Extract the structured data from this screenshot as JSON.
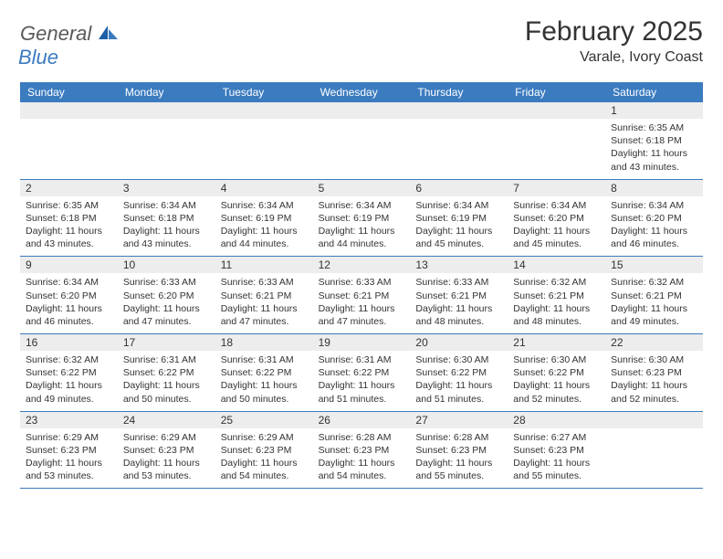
{
  "logo": {
    "text1": "General",
    "text2": "Blue"
  },
  "title": "February 2025",
  "location": "Varale, Ivory Coast",
  "colors": {
    "header_bg": "#3b7bbf",
    "header_text": "#ffffff",
    "daynum_bg": "#ededed",
    "body_text": "#333333",
    "rule": "#3b7bbf",
    "logo_gray": "#5a5a5a",
    "logo_blue": "#3b7bbf"
  },
  "day_names": [
    "Sunday",
    "Monday",
    "Tuesday",
    "Wednesday",
    "Thursday",
    "Friday",
    "Saturday"
  ],
  "weeks": [
    [
      null,
      null,
      null,
      null,
      null,
      null,
      {
        "d": "1",
        "sr": "6:35 AM",
        "ss": "6:18 PM",
        "dl": "11 hours and 43 minutes."
      }
    ],
    [
      {
        "d": "2",
        "sr": "6:35 AM",
        "ss": "6:18 PM",
        "dl": "11 hours and 43 minutes."
      },
      {
        "d": "3",
        "sr": "6:34 AM",
        "ss": "6:18 PM",
        "dl": "11 hours and 43 minutes."
      },
      {
        "d": "4",
        "sr": "6:34 AM",
        "ss": "6:19 PM",
        "dl": "11 hours and 44 minutes."
      },
      {
        "d": "5",
        "sr": "6:34 AM",
        "ss": "6:19 PM",
        "dl": "11 hours and 44 minutes."
      },
      {
        "d": "6",
        "sr": "6:34 AM",
        "ss": "6:19 PM",
        "dl": "11 hours and 45 minutes."
      },
      {
        "d": "7",
        "sr": "6:34 AM",
        "ss": "6:20 PM",
        "dl": "11 hours and 45 minutes."
      },
      {
        "d": "8",
        "sr": "6:34 AM",
        "ss": "6:20 PM",
        "dl": "11 hours and 46 minutes."
      }
    ],
    [
      {
        "d": "9",
        "sr": "6:34 AM",
        "ss": "6:20 PM",
        "dl": "11 hours and 46 minutes."
      },
      {
        "d": "10",
        "sr": "6:33 AM",
        "ss": "6:20 PM",
        "dl": "11 hours and 47 minutes."
      },
      {
        "d": "11",
        "sr": "6:33 AM",
        "ss": "6:21 PM",
        "dl": "11 hours and 47 minutes."
      },
      {
        "d": "12",
        "sr": "6:33 AM",
        "ss": "6:21 PM",
        "dl": "11 hours and 47 minutes."
      },
      {
        "d": "13",
        "sr": "6:33 AM",
        "ss": "6:21 PM",
        "dl": "11 hours and 48 minutes."
      },
      {
        "d": "14",
        "sr": "6:32 AM",
        "ss": "6:21 PM",
        "dl": "11 hours and 48 minutes."
      },
      {
        "d": "15",
        "sr": "6:32 AM",
        "ss": "6:21 PM",
        "dl": "11 hours and 49 minutes."
      }
    ],
    [
      {
        "d": "16",
        "sr": "6:32 AM",
        "ss": "6:22 PM",
        "dl": "11 hours and 49 minutes."
      },
      {
        "d": "17",
        "sr": "6:31 AM",
        "ss": "6:22 PM",
        "dl": "11 hours and 50 minutes."
      },
      {
        "d": "18",
        "sr": "6:31 AM",
        "ss": "6:22 PM",
        "dl": "11 hours and 50 minutes."
      },
      {
        "d": "19",
        "sr": "6:31 AM",
        "ss": "6:22 PM",
        "dl": "11 hours and 51 minutes."
      },
      {
        "d": "20",
        "sr": "6:30 AM",
        "ss": "6:22 PM",
        "dl": "11 hours and 51 minutes."
      },
      {
        "d": "21",
        "sr": "6:30 AM",
        "ss": "6:22 PM",
        "dl": "11 hours and 52 minutes."
      },
      {
        "d": "22",
        "sr": "6:30 AM",
        "ss": "6:23 PM",
        "dl": "11 hours and 52 minutes."
      }
    ],
    [
      {
        "d": "23",
        "sr": "6:29 AM",
        "ss": "6:23 PM",
        "dl": "11 hours and 53 minutes."
      },
      {
        "d": "24",
        "sr": "6:29 AM",
        "ss": "6:23 PM",
        "dl": "11 hours and 53 minutes."
      },
      {
        "d": "25",
        "sr": "6:29 AM",
        "ss": "6:23 PM",
        "dl": "11 hours and 54 minutes."
      },
      {
        "d": "26",
        "sr": "6:28 AM",
        "ss": "6:23 PM",
        "dl": "11 hours and 54 minutes."
      },
      {
        "d": "27",
        "sr": "6:28 AM",
        "ss": "6:23 PM",
        "dl": "11 hours and 55 minutes."
      },
      {
        "d": "28",
        "sr": "6:27 AM",
        "ss": "6:23 PM",
        "dl": "11 hours and 55 minutes."
      },
      null
    ]
  ],
  "labels": {
    "sunrise": "Sunrise:",
    "sunset": "Sunset:",
    "daylight": "Daylight:"
  }
}
